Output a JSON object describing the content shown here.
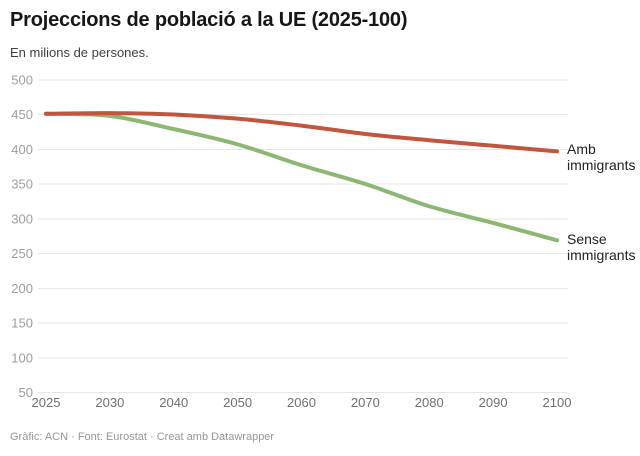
{
  "header": {
    "title": "Projeccions de població a la UE (2025-100)",
    "subtitle": "En milions de persones."
  },
  "footer": {
    "attribution": "Gràfic: ACN · Font: Eurostat · Creat amb Datawrapper"
  },
  "chart_data": {
    "type": "line",
    "title": "Projeccions de població a la UE (2025-100)",
    "subtitle": "En milions de persones.",
    "xlabel": "",
    "ylabel": "",
    "x": [
      2025,
      2030,
      2040,
      2050,
      2060,
      2070,
      2080,
      2090,
      2100
    ],
    "x_tick_labels": [
      "2025",
      "2030",
      "2040",
      "2050",
      "2060",
      "2070",
      "2080",
      "2090",
      "2100"
    ],
    "yticks": [
      500,
      450,
      400,
      350,
      300,
      250,
      200,
      150,
      100,
      50
    ],
    "ylim": [
      50,
      500
    ],
    "grid": true,
    "x_axis_spacing": "equal",
    "legend_position": "direct-labels-right",
    "series": [
      {
        "name": "Amb immigrants",
        "color": "#c1563e",
        "values": [
          451,
          452,
          450,
          444,
          434,
          422,
          413,
          405,
          397
        ]
      },
      {
        "name": "Sense immigrants",
        "color": "#8ab870",
        "values": [
          451,
          448,
          429,
          407,
          377,
          350,
          318,
          294,
          269
        ]
      }
    ]
  }
}
